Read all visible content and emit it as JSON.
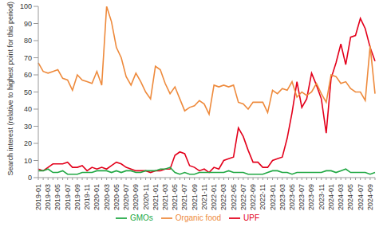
{
  "chart_data": {
    "type": "line",
    "y_label": "Search interest (relative to highest point for this period)",
    "categories": [
      "2019-01",
      null,
      "2019-03",
      null,
      "2019-05",
      null,
      "2019-07",
      null,
      "2019-09",
      null,
      "2019-11",
      null,
      "2020-01",
      null,
      "2020-03",
      null,
      "2020-05",
      null,
      "2020-07",
      null,
      "2020-09",
      null,
      "2020-11",
      null,
      "2021-01",
      null,
      "2021-03",
      null,
      "2021-05",
      null,
      "2021-07",
      null,
      "2021-09",
      null,
      "2021-11",
      null,
      "2022-01",
      null,
      "2022-03",
      null,
      "2022-05",
      null,
      "2022-07",
      null,
      "2022-09",
      null,
      "2022-11",
      null,
      "2023-01",
      null,
      "2023-03",
      null,
      "2023-05",
      null,
      "2023-07",
      null,
      "2023-09",
      null,
      "2023-11",
      null,
      "2024-01",
      null,
      "2024-03",
      null,
      "2024-05",
      null,
      "2024-07",
      null,
      "2024-09",
      null
    ],
    "series": [
      {
        "name": "UPF",
        "color": "#e3001b",
        "values": [
          5,
          4,
          6,
          8,
          8,
          8,
          9,
          6,
          6,
          7,
          4,
          6,
          5,
          6,
          5,
          7,
          9,
          8,
          6,
          5,
          4,
          4,
          4,
          3,
          4,
          4,
          5,
          5,
          13,
          15,
          14,
          7,
          6,
          4,
          5,
          3,
          6,
          5,
          10,
          11,
          12,
          29,
          24,
          16,
          9,
          9,
          6,
          6,
          10,
          11,
          12,
          23,
          38,
          56,
          41,
          46,
          61,
          54,
          46,
          26,
          58,
          67,
          78,
          66,
          82,
          83,
          93,
          87,
          76,
          68
        ]
      },
      {
        "name": "Organic food",
        "color": "#ee8a3c",
        "values": [
          67,
          62,
          61,
          62,
          63,
          58,
          57,
          51,
          60,
          57,
          56,
          55,
          62,
          54,
          100,
          91,
          76,
          70,
          59,
          54,
          61,
          56,
          50,
          46,
          65,
          63,
          55,
          49,
          53,
          46,
          39,
          41,
          42,
          45,
          43,
          37,
          54,
          53,
          54,
          53,
          54,
          44,
          43,
          40,
          44,
          44,
          44,
          38,
          51,
          49,
          52,
          51,
          56,
          47,
          50,
          48,
          50,
          55,
          49,
          44,
          60,
          59,
          55,
          56,
          52,
          50,
          50,
          45,
          77,
          49
        ]
      },
      {
        "name": "GMOs",
        "color": "#21a844",
        "values": [
          4,
          4,
          5,
          3,
          3,
          4,
          2,
          2,
          2,
          3,
          3,
          3,
          4,
          4,
          4,
          3,
          4,
          3,
          4,
          4,
          3,
          3,
          4,
          4,
          4,
          5,
          5,
          6,
          3,
          2,
          3,
          2,
          2,
          3,
          3,
          3,
          3,
          3,
          3,
          4,
          3,
          3,
          3,
          2,
          2,
          2,
          2,
          3,
          4,
          4,
          3,
          3,
          2,
          3,
          3,
          3,
          3,
          3,
          3,
          4,
          4,
          3,
          4,
          5,
          3,
          3,
          3,
          3,
          2,
          3
        ]
      }
    ],
    "ylim": [
      0,
      100
    ],
    "yticks": [
      0,
      10,
      20,
      30,
      40,
      50,
      60,
      70,
      80,
      90,
      100
    ],
    "legend": "bottom",
    "grid": false
  }
}
